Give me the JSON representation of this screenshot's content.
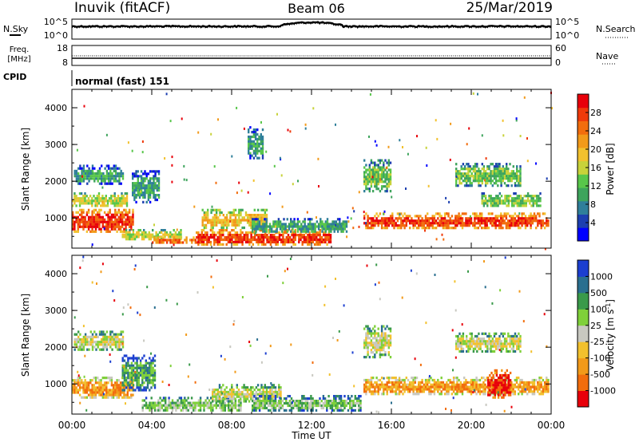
{
  "header": {
    "station": "Inuvik (fitACF)",
    "beam": "Beam 06",
    "date": "25/Mar/2019"
  },
  "aux_panels": {
    "nsky_label": "N.Sky",
    "nsearch_label": "N.Search",
    "noise_ticks_left": [
      "10^5",
      "10^0"
    ],
    "noise_ticks_right": [
      "10^5",
      "10^0"
    ],
    "freq_label_1": "Freq.",
    "freq_label_2": "[MHz]",
    "freq_ticks": [
      "18",
      "8"
    ],
    "nave_label": "Nave",
    "nave_ticks": [
      "60",
      "0"
    ],
    "cpid_label": "CPID",
    "cpid_text": "normal (fast) 151"
  },
  "chart_data": [
    {
      "type": "heatmap",
      "title": "Power",
      "ylabel": "Slant Range [km]",
      "xlabel": "Time UT",
      "xticks": [
        "00:00",
        "04:00",
        "08:00",
        "12:00",
        "16:00",
        "20:00",
        "00:00"
      ],
      "yticks": [
        "1000",
        "2000",
        "3000",
        "4000"
      ],
      "ylim": [
        180,
        4500
      ],
      "colorbar": {
        "label": "Power [dB]",
        "ticks": [
          "4",
          "8",
          "12",
          "16",
          "20",
          "24",
          "28"
        ],
        "colors": [
          "#0000ff",
          "#1d3fb0",
          "#2f7f9a",
          "#3ea45c",
          "#58c64a",
          "#c8d23a",
          "#f2c12e",
          "#f29a1a",
          "#f26d0d",
          "#ef3a0a",
          "#e8000a"
        ]
      },
      "regions": [
        {
          "t0": 0.0,
          "t1": 3.1,
          "r0": 600,
          "r1": 1250,
          "level": 9
        },
        {
          "t0": 0.0,
          "t1": 2.8,
          "r0": 1300,
          "r1": 1700,
          "level": 5
        },
        {
          "t0": 0.1,
          "t1": 2.6,
          "r0": 1900,
          "r1": 2450,
          "level": 3
        },
        {
          "t0": 3.0,
          "t1": 4.4,
          "r0": 1400,
          "r1": 2300,
          "level": 3
        },
        {
          "t0": 2.5,
          "t1": 5.5,
          "r0": 400,
          "r1": 700,
          "level": 5
        },
        {
          "t0": 4.0,
          "t1": 6.5,
          "r0": 300,
          "r1": 500,
          "level": 8
        },
        {
          "t0": 6.5,
          "t1": 9.8,
          "r0": 700,
          "r1": 1250,
          "level": 6
        },
        {
          "t0": 6.2,
          "t1": 13.0,
          "r0": 250,
          "r1": 700,
          "level": 9
        },
        {
          "t0": 9.0,
          "t1": 13.8,
          "r0": 600,
          "r1": 1000,
          "level": 3
        },
        {
          "t0": 8.8,
          "t1": 9.6,
          "r0": 2600,
          "r1": 3500,
          "level": 3
        },
        {
          "t0": 14.6,
          "t1": 23.9,
          "r0": 700,
          "r1": 1150,
          "level": 9
        },
        {
          "t0": 14.6,
          "t1": 16.0,
          "r0": 1700,
          "r1": 2600,
          "level": 4
        },
        {
          "t0": 19.2,
          "t1": 22.5,
          "r0": 1850,
          "r1": 2500,
          "level": 4
        },
        {
          "t0": 20.5,
          "t1": 23.5,
          "r0": 1300,
          "r1": 1700,
          "level": 4
        }
      ]
    },
    {
      "type": "heatmap",
      "title": "Velocity",
      "ylabel": "Slant Range [km]",
      "xlabel": "Time UT",
      "xticks": [
        "00:00",
        "04:00",
        "08:00",
        "12:00",
        "16:00",
        "20:00",
        "00:00"
      ],
      "yticks": [
        "1000",
        "2000",
        "3000",
        "4000"
      ],
      "ylim": [
        180,
        4500
      ],
      "colorbar": {
        "label": "Velocity [m s^-1]",
        "ticks": [
          "1000",
          "500",
          "100",
          "25",
          "-25",
          "-100",
          "-500",
          "-1000"
        ],
        "colors": [
          "#1c3fd0",
          "#2a6f8f",
          "#3a9a4a",
          "#7fd03a",
          "#c8c8c0",
          "#f2c12e",
          "#f29a1a",
          "#f26d0d",
          "#e8000a"
        ]
      },
      "regions": [
        {
          "t0": 0.0,
          "t1": 3.1,
          "r0": 600,
          "r1": 1200,
          "level": 6
        },
        {
          "t0": 0.1,
          "t1": 2.6,
          "r0": 1900,
          "r1": 2450,
          "level": 4
        },
        {
          "t0": 2.5,
          "t1": 4.2,
          "r0": 800,
          "r1": 1800,
          "level": 2
        },
        {
          "t0": 3.5,
          "t1": 8.5,
          "r0": 250,
          "r1": 650,
          "level": 3
        },
        {
          "t0": 7.0,
          "t1": 10.5,
          "r0": 500,
          "r1": 1000,
          "level": 4
        },
        {
          "t0": 9.0,
          "t1": 14.5,
          "r0": 250,
          "r1": 700,
          "level": 3
        },
        {
          "t0": 14.6,
          "t1": 23.9,
          "r0": 700,
          "r1": 1200,
          "level": 6
        },
        {
          "t0": 14.6,
          "t1": 16.0,
          "r0": 1700,
          "r1": 2600,
          "level": 4
        },
        {
          "t0": 19.2,
          "t1": 22.5,
          "r0": 1850,
          "r1": 2400,
          "level": 4
        },
        {
          "t0": 20.8,
          "t1": 22.0,
          "r0": 600,
          "r1": 1400,
          "level": 8
        }
      ]
    }
  ]
}
